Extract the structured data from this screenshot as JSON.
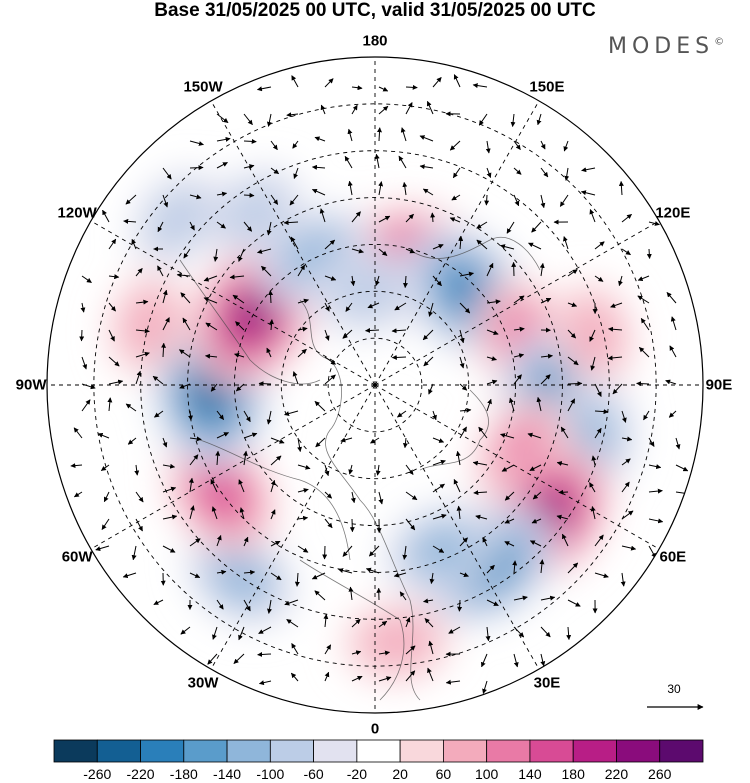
{
  "title": "Base 31/05/2025 00 UTC, valid 31/05/2025 00 UTC",
  "brand": "MODES",
  "brand_mark": "©",
  "longitude_labels": [
    {
      "text": "180",
      "lon": 180
    },
    {
      "text": "150E",
      "lon": 150
    },
    {
      "text": "120E",
      "lon": 120
    },
    {
      "text": "90E",
      "lon": 90
    },
    {
      "text": "60E",
      "lon": 60
    },
    {
      "text": "30E",
      "lon": 30
    },
    {
      "text": "0",
      "lon": 0
    },
    {
      "text": "30W",
      "lon": -30
    },
    {
      "text": "60W",
      "lon": -60
    },
    {
      "text": "90W",
      "lon": -90
    },
    {
      "text": "120W",
      "lon": -120
    },
    {
      "text": "150W",
      "lon": -150
    }
  ],
  "vector_scale": {
    "value": "30"
  },
  "colorbar": {
    "labels": [
      "-260",
      "-220",
      "-180",
      "-140",
      "-100",
      "-60",
      "-20",
      "20",
      "60",
      "100",
      "140",
      "180",
      "220",
      "260"
    ],
    "colors": [
      "#0b3a5c",
      "#135f93",
      "#2a7fba",
      "#5a9ccb",
      "#8fb6da",
      "#bccde7",
      "#e2e2f0",
      "#ffffff",
      "#f9d8dc",
      "#f3abbc",
      "#e97aa6",
      "#d84b95",
      "#b81e86",
      "#8a0c7c",
      "#5c0a6e"
    ]
  },
  "anomalies": [
    {
      "lat": 62,
      "lon": 160,
      "value": 210
    },
    {
      "lat": 62,
      "lon": 135,
      "value": -210
    },
    {
      "lat": 57,
      "lon": 108,
      "value": 120
    },
    {
      "lat": 52,
      "lon": 85,
      "value": -200
    },
    {
      "lat": 42,
      "lon": 103,
      "value": 60
    },
    {
      "lat": 43,
      "lon": 75,
      "value": -130
    },
    {
      "lat": 55,
      "lon": 65,
      "value": 120
    },
    {
      "lat": 44,
      "lon": 53,
      "value": 220
    },
    {
      "lat": 45,
      "lon": 32,
      "value": -210
    },
    {
      "lat": 52,
      "lon": 22,
      "value": -100
    },
    {
      "lat": 35,
      "lon": 5,
      "value": 70
    },
    {
      "lat": 40,
      "lon": -35,
      "value": -100
    },
    {
      "lat": 50,
      "lon": -55,
      "value": 150
    },
    {
      "lat": 55,
      "lon": -88,
      "value": -240
    },
    {
      "lat": 60,
      "lon": -120,
      "value": 230
    },
    {
      "lat": 40,
      "lon": -105,
      "value": 60
    },
    {
      "lat": 60,
      "lon": -155,
      "value": -130
    },
    {
      "lat": 70,
      "lon": -175,
      "value": -90
    },
    {
      "lat": 45,
      "lon": -145,
      "value": -60
    },
    {
      "lat": 35,
      "lon": -130,
      "value": -60
    }
  ]
}
